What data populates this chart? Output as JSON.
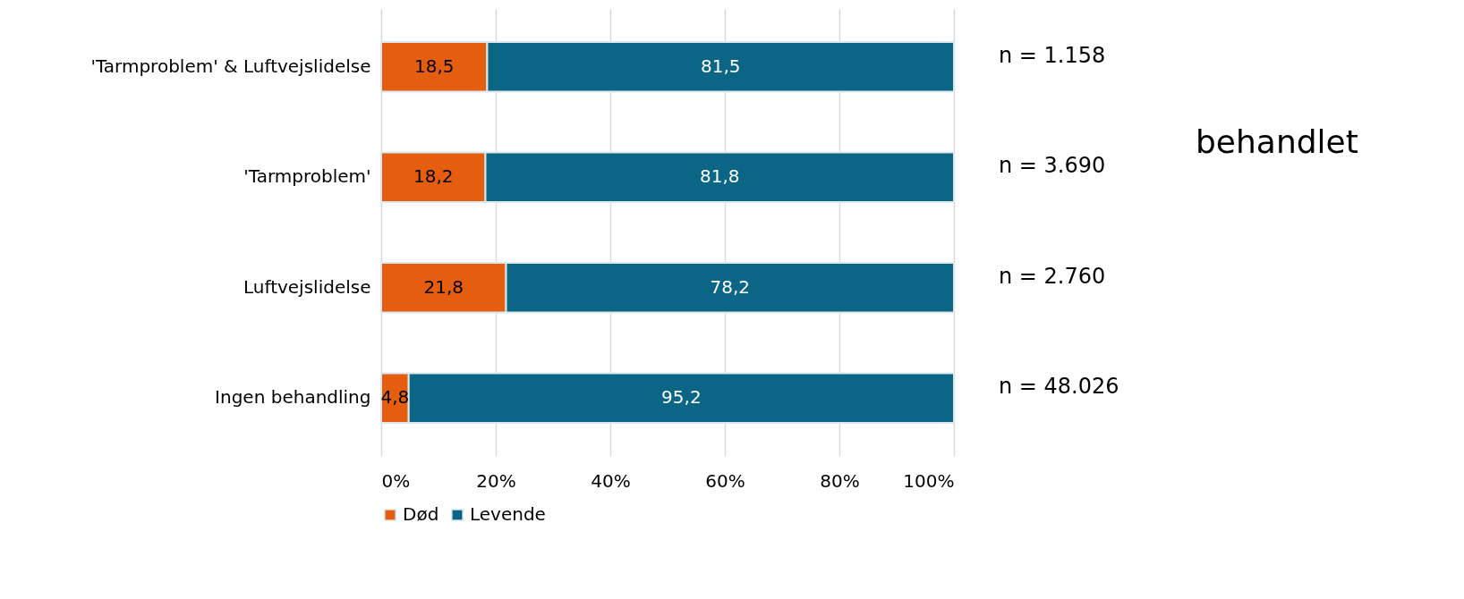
{
  "chart_data": {
    "type": "bar",
    "orientation": "horizontal",
    "stacked": true,
    "categories": [
      "'Tarmproblem' & Luftvejslidelse",
      "'Tarmproblem'",
      "Luftvejslidelse",
      "Ingen behandling"
    ],
    "series": [
      {
        "name": "Død",
        "color": "#e55e10",
        "values": [
          18.5,
          18.2,
          21.8,
          4.8
        ],
        "value_labels": [
          "18,5",
          "18,2",
          "21,8",
          "4,8"
        ]
      },
      {
        "name": "Levende",
        "color": "#0b6585",
        "values": [
          81.5,
          81.8,
          78.2,
          95.2
        ],
        "value_labels": [
          "81,5",
          "81,8",
          "78,2",
          "95,2"
        ]
      }
    ],
    "xlim": [
      0,
      100
    ],
    "xticks": [
      {
        "value": 0,
        "label": "0%"
      },
      {
        "value": 20,
        "label": "20%"
      },
      {
        "value": 40,
        "label": "40%"
      },
      {
        "value": 60,
        "label": "60%"
      },
      {
        "value": 80,
        "label": "80%"
      },
      {
        "value": 100,
        "label": "100%"
      }
    ],
    "grid": "x",
    "legend": "bottom",
    "annotations": [
      "n = 1.158",
      "n = 3.690",
      "n = 2.760",
      "n = 48.026",
      "behandlet"
    ]
  }
}
